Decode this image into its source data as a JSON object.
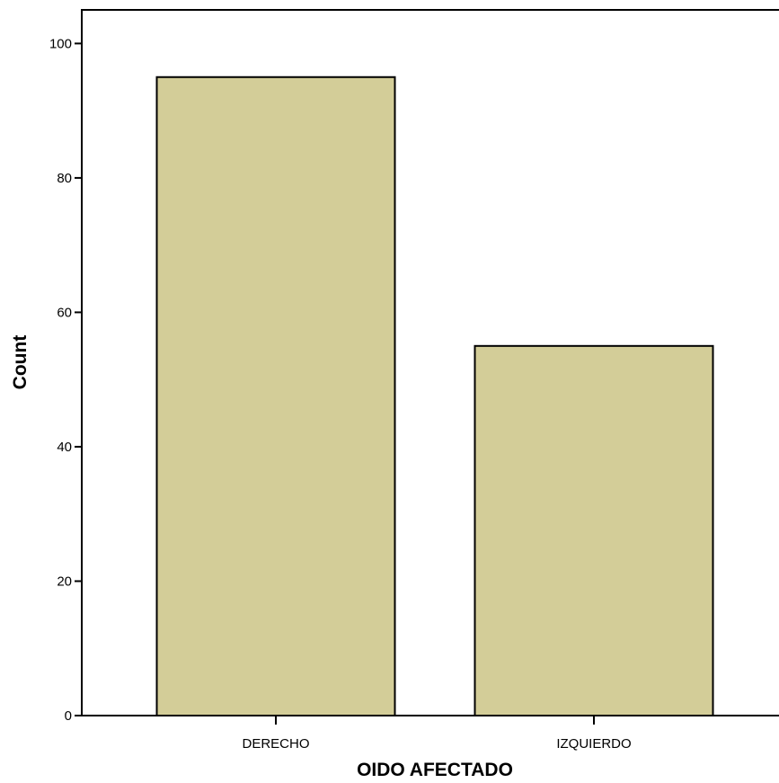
{
  "chart_data": {
    "type": "bar",
    "title": "",
    "xlabel": "OIDO AFECTADO",
    "ylabel": "Count",
    "categories": [
      "DERECHO",
      "IZQUIERDO"
    ],
    "values": [
      95,
      55
    ],
    "ylim": [
      0,
      105
    ],
    "yticks": [
      0,
      20,
      40,
      60,
      80,
      100
    ],
    "grid": false,
    "legend": "none",
    "colors": {
      "bar_fill": "#d3cd98",
      "bar_stroke": "#000000",
      "background": "#ffffff",
      "axis": "#000000"
    }
  }
}
